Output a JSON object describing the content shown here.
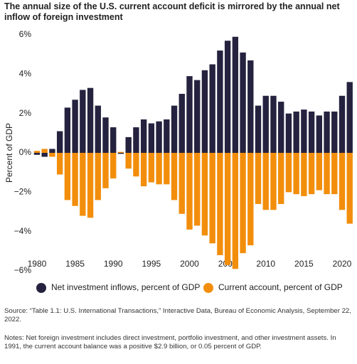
{
  "chart_data": {
    "type": "bar",
    "title": "The annual size of the U.S. current account deficit is mirrored by the annual net inflow of foreign investment",
    "y_label": "Percent of GDP",
    "x": [
      1980,
      1981,
      1982,
      1983,
      1984,
      1985,
      1986,
      1987,
      1988,
      1989,
      1990,
      1991,
      1992,
      1993,
      1994,
      1995,
      1996,
      1997,
      1998,
      1999,
      2000,
      2001,
      2002,
      2003,
      2004,
      2005,
      2006,
      2007,
      2008,
      2009,
      2010,
      2011,
      2012,
      2013,
      2014,
      2015,
      2016,
      2017,
      2018,
      2019,
      2020,
      2021
    ],
    "xlim": [
      1979.5,
      2021.5
    ],
    "xticks": [
      1980,
      1985,
      1990,
      1995,
      2000,
      2005,
      2010,
      2015,
      2020
    ],
    "ylim": [
      -6.4,
      6.4
    ],
    "yticks": [
      {
        "value": -6,
        "label": "−6%"
      },
      {
        "value": -4,
        "label": "−4%"
      },
      {
        "value": -2,
        "label": "−2%"
      },
      {
        "value": 0,
        "label": "0%"
      },
      {
        "value": 2,
        "label": "2%"
      },
      {
        "value": 4,
        "label": "4%"
      },
      {
        "value": 6,
        "label": "6%"
      }
    ],
    "series": [
      {
        "name": "Net investment inflows, percent of GDP",
        "color": "#25223f",
        "values": [
          -0.1,
          -0.2,
          0.2,
          1.1,
          2.3,
          2.7,
          3.2,
          3.3,
          2.4,
          1.8,
          1.3,
          -0.05,
          0.8,
          1.3,
          1.7,
          1.5,
          1.6,
          1.7,
          2.4,
          3.0,
          3.9,
          3.7,
          4.2,
          4.5,
          5.2,
          5.7,
          5.9,
          5.1,
          4.7,
          2.4,
          2.9,
          2.9,
          2.6,
          2.0,
          2.1,
          2.2,
          2.1,
          1.9,
          2.1,
          2.1,
          2.9,
          3.6
        ]
      },
      {
        "name": "Current account, percent of GDP",
        "color": "#f28e0c",
        "values": [
          0.1,
          0.2,
          -0.2,
          -1.1,
          -2.4,
          -2.7,
          -3.2,
          -3.3,
          -2.4,
          -1.8,
          -1.3,
          0.05,
          -0.8,
          -1.2,
          -1.7,
          -1.5,
          -1.6,
          -1.6,
          -2.4,
          -3.1,
          -3.9,
          -3.7,
          -4.2,
          -4.6,
          -5.2,
          -5.7,
          -5.9,
          -5.1,
          -4.7,
          -2.6,
          -2.9,
          -2.9,
          -2.6,
          -2.0,
          -2.1,
          -2.2,
          -2.1,
          -1.9,
          -2.1,
          -2.1,
          -2.9,
          -3.6
        ]
      }
    ],
    "legend": "bottom",
    "source": "Source: “Table 1.1: U.S. International Transactions,” Interactive Data, Bureau of Economic Analysis, September 22, 2022.",
    "notes": "Notes: Net foreign investment includes direct investment, portfolio investment, and other investment assets. In 1991, the current account balance was a positive $2.9 billion, or 0.05 percent of GDP."
  }
}
